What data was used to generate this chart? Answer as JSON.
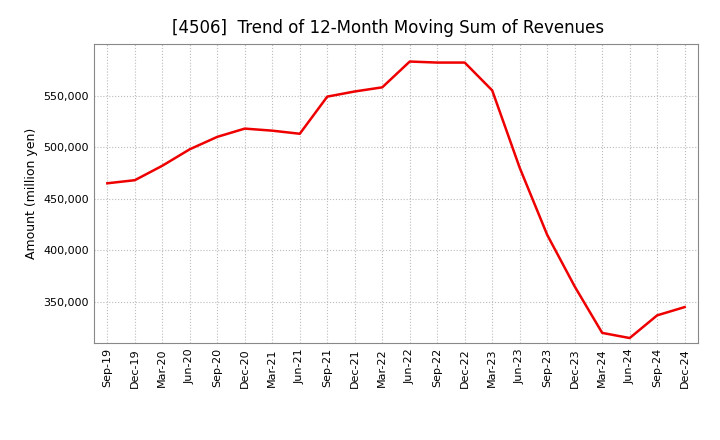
{
  "title": "[4506]  Trend of 12-Month Moving Sum of Revenues",
  "ylabel": "Amount (million yen)",
  "line_color": "#EE0000",
  "line_width": 1.8,
  "background_color": "#FFFFFF",
  "grid_color": "#BBBBBB",
  "x_labels": [
    "Sep-19",
    "Dec-19",
    "Mar-20",
    "Jun-20",
    "Sep-20",
    "Dec-20",
    "Mar-21",
    "Jun-21",
    "Sep-21",
    "Dec-21",
    "Mar-22",
    "Jun-22",
    "Sep-22",
    "Dec-22",
    "Mar-23",
    "Jun-23",
    "Sep-23",
    "Dec-23",
    "Mar-24",
    "Jun-24",
    "Sep-24",
    "Dec-24"
  ],
  "y_values": [
    465000,
    468000,
    482000,
    498000,
    510000,
    518000,
    516000,
    513000,
    549000,
    554000,
    558000,
    583000,
    582000,
    582000,
    555000,
    480000,
    415000,
    365000,
    320000,
    315000,
    337000,
    345000
  ],
  "ylim": [
    310000,
    600000
  ],
  "yticks": [
    350000,
    400000,
    450000,
    500000,
    550000
  ],
  "title_fontsize": 12,
  "tick_fontsize": 8,
  "ylabel_fontsize": 9,
  "title_fontweight": "normal"
}
